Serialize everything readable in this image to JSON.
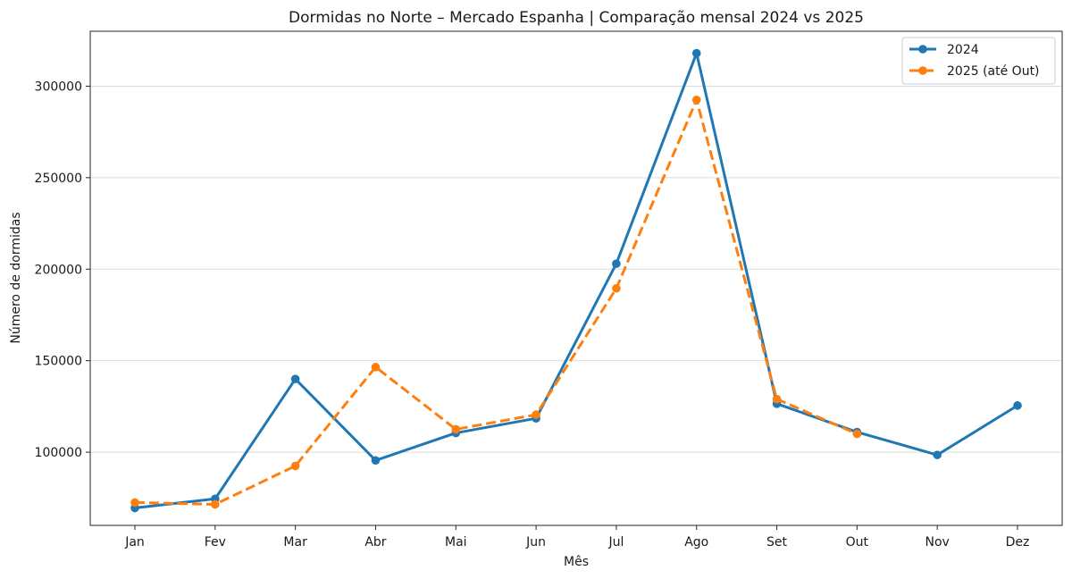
{
  "chart_data": {
    "type": "line",
    "title": "Dormidas no Norte – Mercado Espanha | Comparação mensal 2024 vs 2025",
    "xlabel": "Mês",
    "ylabel": "Número de dormidas",
    "categories": [
      "Jan",
      "Fev",
      "Mar",
      "Abr",
      "Mai",
      "Jun",
      "Jul",
      "Ago",
      "Set",
      "Out",
      "Nov",
      "Dez"
    ],
    "ylim": [
      60000,
      330000
    ],
    "yticks": [
      100000,
      150000,
      200000,
      250000,
      300000
    ],
    "ytick_labels": [
      "100000",
      "150000",
      "200000",
      "250000",
      "300000"
    ],
    "grid": "horizontal",
    "legend_position": "top-right",
    "series": [
      {
        "name": "2024",
        "color": "#1f77b4",
        "line_style": "solid",
        "values": [
          69500,
          74500,
          140000,
          95500,
          110500,
          118500,
          203000,
          318000,
          126500,
          111000,
          98500,
          125500
        ]
      },
      {
        "name": "2025 (até Out)",
        "color": "#ff7f0e",
        "line_style": "dashed",
        "values": [
          72500,
          71500,
          92500,
          146500,
          112500,
          120500,
          189500,
          292500,
          129000,
          110000,
          null,
          null
        ]
      }
    ]
  }
}
